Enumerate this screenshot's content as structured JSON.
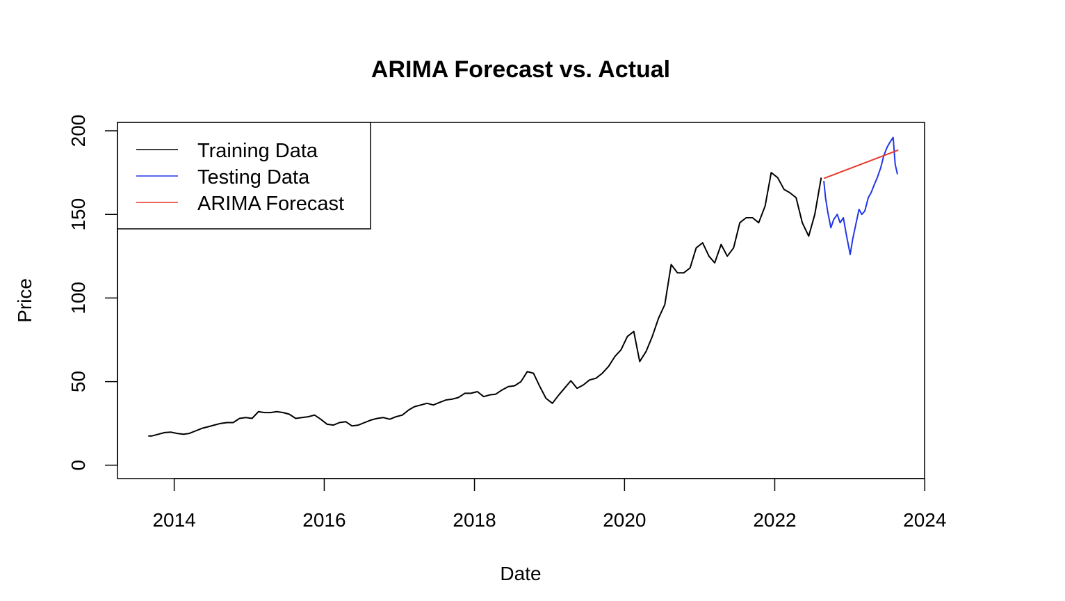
{
  "chart_data": {
    "type": "line",
    "title": "ARIMA Forecast vs. Actual",
    "xlabel": "Date",
    "ylabel": "Price",
    "x_ticks": [
      "2014",
      "2016",
      "2018",
      "2020",
      "2022",
      "2024"
    ],
    "y_ticks": [
      "0",
      "50",
      "100",
      "150",
      "200"
    ],
    "xlim": [
      "2013-03-31",
      "2023-12-31"
    ],
    "ylim": [
      -8,
      205
    ],
    "grid": false,
    "legend_position": "top-left",
    "series": [
      {
        "name": "Training Data",
        "color": "#000000",
        "x": [
          "2013-08-28",
          "2013-09-15",
          "2013-10-15",
          "2013-11-15",
          "2013-12-15",
          "2014-01-15",
          "2014-02-15",
          "2014-03-15",
          "2014-04-15",
          "2014-05-15",
          "2014-06-15",
          "2014-07-15",
          "2014-08-15",
          "2014-09-15",
          "2014-10-15",
          "2014-11-15",
          "2014-12-15",
          "2015-01-15",
          "2015-02-15",
          "2015-03-15",
          "2015-04-15",
          "2015-05-15",
          "2015-06-15",
          "2015-07-15",
          "2015-08-15",
          "2015-09-15",
          "2015-10-15",
          "2015-11-15",
          "2015-12-15",
          "2016-01-15",
          "2016-02-15",
          "2016-03-15",
          "2016-04-15",
          "2016-05-15",
          "2016-06-15",
          "2016-07-15",
          "2016-08-15",
          "2016-09-15",
          "2016-10-15",
          "2016-11-15",
          "2016-12-15",
          "2017-01-15",
          "2017-02-15",
          "2017-03-15",
          "2017-04-15",
          "2017-05-15",
          "2017-06-15",
          "2017-07-15",
          "2017-08-15",
          "2017-09-15",
          "2017-10-15",
          "2017-11-15",
          "2017-12-15",
          "2018-01-15",
          "2018-02-15",
          "2018-03-15",
          "2018-04-15",
          "2018-05-15",
          "2018-06-15",
          "2018-07-15",
          "2018-08-15",
          "2018-09-15",
          "2018-10-15",
          "2018-11-15",
          "2018-12-15",
          "2019-01-15",
          "2019-02-15",
          "2019-03-15",
          "2019-04-15",
          "2019-05-15",
          "2019-06-15",
          "2019-07-15",
          "2019-08-15",
          "2019-09-15",
          "2019-10-15",
          "2019-11-15",
          "2019-12-15",
          "2020-01-15",
          "2020-02-15",
          "2020-03-15",
          "2020-04-15",
          "2020-05-15",
          "2020-06-15",
          "2020-07-15",
          "2020-08-15",
          "2020-09-15",
          "2020-10-15",
          "2020-11-15",
          "2020-12-15",
          "2021-01-15",
          "2021-02-15",
          "2021-03-15",
          "2021-04-15",
          "2021-05-15",
          "2021-06-15",
          "2021-07-15",
          "2021-08-15",
          "2021-09-15",
          "2021-10-15",
          "2021-11-15",
          "2021-12-15",
          "2022-01-15",
          "2022-02-15",
          "2022-03-15",
          "2022-04-15",
          "2022-05-15",
          "2022-06-15",
          "2022-07-15",
          "2022-08-15"
        ],
        "values": [
          17.5,
          17.5,
          18.5,
          19.5,
          19.8,
          19.0,
          18.5,
          19.0,
          20.5,
          22.0,
          23.0,
          24.0,
          25.0,
          25.5,
          25.5,
          28.0,
          28.5,
          28.0,
          32.0,
          31.5,
          31.5,
          32.0,
          31.5,
          30.5,
          28.0,
          28.5,
          29.0,
          30.0,
          27.5,
          24.5,
          24.0,
          25.5,
          26.0,
          23.5,
          24.0,
          25.5,
          27.0,
          28.0,
          28.5,
          27.5,
          29.0,
          30.0,
          33.0,
          35.0,
          36.0,
          37.0,
          36.0,
          37.5,
          39.0,
          39.5,
          40.5,
          43.0,
          43.0,
          44.0,
          41.0,
          42.0,
          42.5,
          45.0,
          47.0,
          47.5,
          50.0,
          56.0,
          55.0,
          47.0,
          40.0,
          37.0,
          42.0,
          46.0,
          50.5,
          46.0,
          48.0,
          51.0,
          52.0,
          55.0,
          59.0,
          65.0,
          69.0,
          77.0,
          80.0,
          62.0,
          68.0,
          77.0,
          88.0,
          96.0,
          120.0,
          115.0,
          115.0,
          118.0,
          130.0,
          133.0,
          125.0,
          121.0,
          132.0,
          125.0,
          130.0,
          145.0,
          148.0,
          148.0,
          145.0,
          155.0,
          175.0,
          172.0,
          165.0,
          163.0,
          160.0,
          145.0,
          137.0,
          150.0,
          172.0
        ]
      },
      {
        "name": "Testing Data",
        "color": "#2036e8",
        "x": [
          "2022-08-28",
          "2022-09-05",
          "2022-09-15",
          "2022-10-01",
          "2022-10-15",
          "2022-11-01",
          "2022-11-15",
          "2022-12-01",
          "2022-12-15",
          "2023-01-03",
          "2023-01-15",
          "2023-02-01",
          "2023-02-15",
          "2023-03-01",
          "2023-03-15",
          "2023-04-01",
          "2023-04-15",
          "2023-05-01",
          "2023-05-15",
          "2023-06-01",
          "2023-06-15",
          "2023-07-01",
          "2023-07-15",
          "2023-07-31",
          "2023-08-10",
          "2023-08-21"
        ],
        "values": [
          170.0,
          160.0,
          152.0,
          142.0,
          147.0,
          150.0,
          145.0,
          148.0,
          138.0,
          126.0,
          135.0,
          145.0,
          153.0,
          150.0,
          152.0,
          160.0,
          163.0,
          168.0,
          172.0,
          178.0,
          185.0,
          190.0,
          193.0,
          196.0,
          180.0,
          174.0
        ]
      },
      {
        "name": "ARIMA Forecast",
        "color": "#e8372c",
        "x": [
          "2022-08-28",
          "2023-08-25"
        ],
        "values": [
          171.5,
          188.5
        ]
      }
    ]
  }
}
